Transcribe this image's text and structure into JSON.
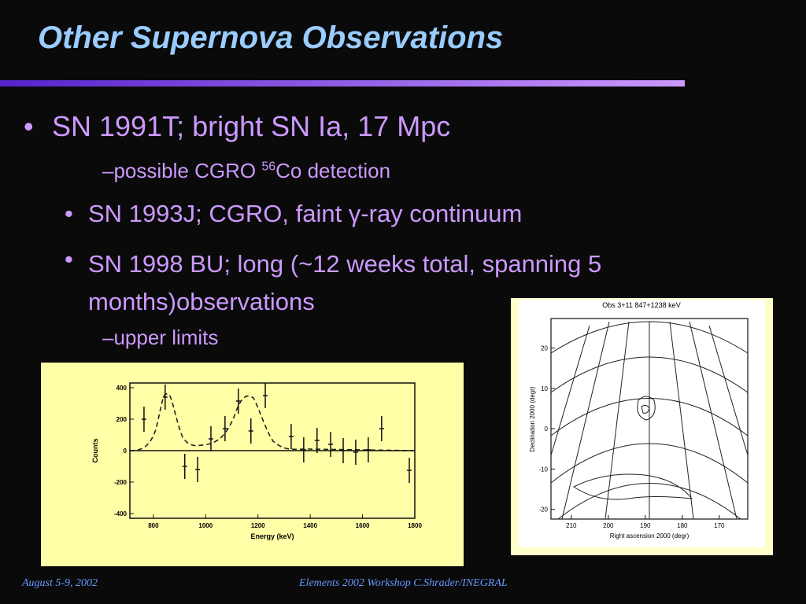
{
  "title": "Other Supernova Observations",
  "bullets": [
    {
      "text": "SN 1991T; bright SN Ia, 17 Mpc",
      "sub": {
        "before": "possible CGRO ",
        "sup": "56",
        "after": "Co detection"
      }
    },
    {
      "text": "SN 1993J; CGRO, faint γ-ray continuum"
    },
    {
      "text": "SN 1998 BU; long (~12 weeks total, spanning 5 months)observations",
      "sub": {
        "text": "upper limits"
      }
    }
  ],
  "spectrum": {
    "y_label": "Counts",
    "x_label": "Energy (keV)",
    "xlim": [
      710,
      1800
    ],
    "ylim": [
      -430,
      430
    ],
    "xticks": [
      800,
      1000,
      1200,
      1400,
      1600,
      1800
    ],
    "yticks": [
      400,
      200,
      0,
      -200,
      -400
    ],
    "energy": [
      764,
      845,
      920,
      969,
      1020,
      1074,
      1125,
      1173,
      1228,
      1327,
      1375,
      1426,
      1478,
      1526,
      1574,
      1622,
      1673,
      1779
    ],
    "counts": [
      200,
      340,
      -100,
      -120,
      75,
      140,
      315,
      125,
      350,
      90,
      5,
      65,
      40,
      0,
      -10,
      5,
      140,
      -125
    ],
    "errors": [
      80,
      80,
      80,
      80,
      80,
      80,
      80,
      80,
      80,
      80,
      80,
      80,
      80,
      80,
      80,
      80,
      80,
      80
    ]
  },
  "map": {
    "title": "Obs 3+11 847+1238 keV",
    "y_label": "Declination 2000 (degr)",
    "x_label": "Right ascension 2000 (degr)",
    "xlim": [
      215.5,
      162.3
    ],
    "ylim": [
      -22.4,
      27.3
    ],
    "xticks": [
      210,
      200,
      190,
      180,
      170
    ],
    "yticks": [
      20,
      10,
      0,
      -10,
      -20
    ]
  },
  "footer": {
    "left": "August 5-9, 2002",
    "center": "Elements 2002 Workshop  C.Shrader/INEGRAL"
  }
}
